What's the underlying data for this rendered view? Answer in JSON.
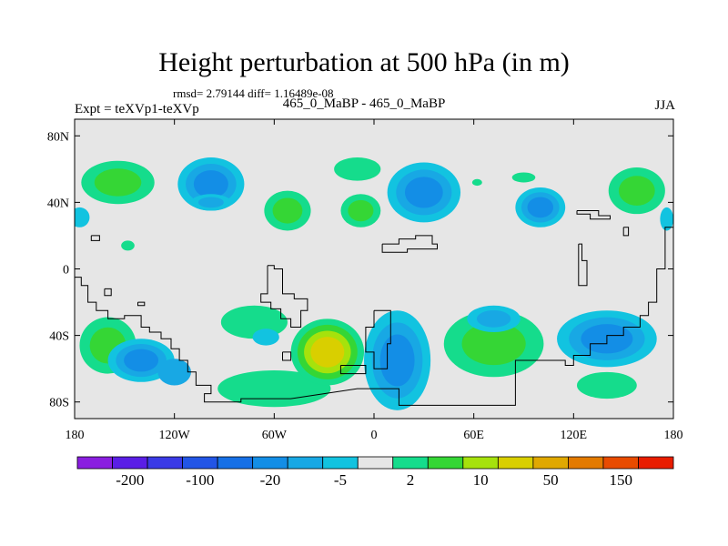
{
  "chart_data": {
    "type": "heatmap",
    "title": "Height perturbation at 500 hPa (in m)",
    "stats": "rmsd= 2.79144 diff= 1.16489e-08",
    "left_label": "Expt = teXVp1-teXVp",
    "center_label": "465_0_MaBP - 465_0_MaBP",
    "right_label": "JJA",
    "xlabel": "",
    "ylabel": "",
    "x_range": [
      -180,
      180
    ],
    "y_range": [
      -90,
      90
    ],
    "x_ticks": [
      {
        "value": -180,
        "label": "180"
      },
      {
        "value": -120,
        "label": "120W"
      },
      {
        "value": -60,
        "label": "60W"
      },
      {
        "value": 0,
        "label": "0"
      },
      {
        "value": 60,
        "label": "60E"
      },
      {
        "value": 120,
        "label": "120E"
      },
      {
        "value": 180,
        "label": "180"
      }
    ],
    "y_ticks": [
      {
        "value": 80,
        "label": "80N"
      },
      {
        "value": 40,
        "label": "40N"
      },
      {
        "value": 0,
        "label": "0"
      },
      {
        "value": -40,
        "label": "40S"
      },
      {
        "value": -80,
        "label": "80S"
      }
    ],
    "colorbar": {
      "colors": [
        "#8a1ee0",
        "#5a1ee6",
        "#3a3ae6",
        "#2255e6",
        "#1670e6",
        "#138ee6",
        "#18a8e4",
        "#12c3e0",
        "#e6e6e6",
        "#15dc8c",
        "#35d635",
        "#a6e20c",
        "#d9cf00",
        "#e0a800",
        "#e37a00",
        "#e84b00",
        "#e81d00"
      ],
      "labels": [
        {
          "index": 1,
          "text": "-200"
        },
        {
          "index": 3,
          "text": "-100"
        },
        {
          "index": 5,
          "text": "-20"
        },
        {
          "index": 7,
          "text": "-5"
        },
        {
          "index": 9,
          "text": "2"
        },
        {
          "index": 11,
          "text": "10"
        },
        {
          "index": 13,
          "text": "50"
        },
        {
          "index": 15,
          "text": "150"
        }
      ]
    },
    "features": [
      {
        "lon": -154,
        "lat": 52,
        "rlon": 22,
        "rlat": 13,
        "levels": [
          "#15dc8c",
          "#35d635"
        ]
      },
      {
        "lon": -177,
        "lat": 31,
        "rlon": 6,
        "rlat": 6,
        "levels": [
          "#12c3e0"
        ]
      },
      {
        "lon": -98,
        "lat": 51,
        "rlon": 20,
        "rlat": 16,
        "levels": [
          "#12c3e0",
          "#18a8e4",
          "#138ee6"
        ]
      },
      {
        "lon": -98,
        "lat": 40,
        "rlon": 12,
        "rlat": 5,
        "levels": [
          "#12c3e0",
          "#18a8e4"
        ]
      },
      {
        "lon": -148,
        "lat": 14,
        "rlon": 4,
        "rlat": 3,
        "levels": [
          "#15dc8c"
        ]
      },
      {
        "lon": -52,
        "lat": 35,
        "rlon": 14,
        "rlat": 12,
        "levels": [
          "#15dc8c",
          "#35d635"
        ]
      },
      {
        "lon": -10,
        "lat": 60,
        "rlon": 14,
        "rlat": 7,
        "levels": [
          "#15dc8c"
        ]
      },
      {
        "lon": -8,
        "lat": 35,
        "rlon": 12,
        "rlat": 10,
        "levels": [
          "#15dc8c",
          "#35d635"
        ]
      },
      {
        "lon": 30,
        "lat": 46,
        "rlon": 22,
        "rlat": 18,
        "levels": [
          "#12c3e0",
          "#18a8e4",
          "#138ee6"
        ]
      },
      {
        "lon": 62,
        "lat": 52,
        "rlon": 3,
        "rlat": 2,
        "levels": [
          "#15dc8c"
        ]
      },
      {
        "lon": 90,
        "lat": 55,
        "rlon": 7,
        "rlat": 3,
        "levels": [
          "#15dc8c"
        ]
      },
      {
        "lon": 100,
        "lat": 37,
        "rlon": 15,
        "rlat": 12,
        "levels": [
          "#12c3e0",
          "#18a8e4",
          "#138ee6"
        ]
      },
      {
        "lon": 158,
        "lat": 47,
        "rlon": 17,
        "rlat": 14,
        "levels": [
          "#15dc8c",
          "#35d635"
        ]
      },
      {
        "lon": 176,
        "lat": 30,
        "rlon": 4,
        "rlat": 7,
        "levels": [
          "#12c3e0"
        ]
      },
      {
        "lon": -160,
        "lat": -46,
        "rlon": 17,
        "rlat": 17,
        "levels": [
          "#15dc8c",
          "#35d635"
        ]
      },
      {
        "lon": -140,
        "lat": -55,
        "rlon": 20,
        "rlat": 13,
        "levels": [
          "#12c3e0",
          "#18a8e4",
          "#138ee6"
        ]
      },
      {
        "lon": -120,
        "lat": -62,
        "rlon": 10,
        "rlat": 8,
        "levels": [
          "#18a8e4"
        ]
      },
      {
        "lon": -72,
        "lat": -32,
        "rlon": 20,
        "rlat": 10,
        "levels": [
          "#15dc8c"
        ]
      },
      {
        "lon": -60,
        "lat": -72,
        "rlon": 34,
        "rlat": 11,
        "levels": [
          "#15dc8c"
        ]
      },
      {
        "lon": -28,
        "lat": -50,
        "rlon": 22,
        "rlat": 20,
        "levels": [
          "#15dc8c",
          "#35d635",
          "#a6e20c",
          "#d9cf00"
        ]
      },
      {
        "lon": -65,
        "lat": -41,
        "rlon": 8,
        "rlat": 5,
        "levels": [
          "#12c3e0"
        ]
      },
      {
        "lon": 14,
        "lat": -55,
        "rlon": 20,
        "rlat": 30,
        "levels": [
          "#12c3e0",
          "#18a8e4",
          "#138ee6"
        ]
      },
      {
        "lon": 72,
        "lat": -45,
        "rlon": 30,
        "rlat": 20,
        "levels": [
          "#15dc8c",
          "#35d635"
        ]
      },
      {
        "lon": 72,
        "lat": -30,
        "rlon": 16,
        "rlat": 8,
        "levels": [
          "#12c3e0",
          "#18a8e4"
        ]
      },
      {
        "lon": 140,
        "lat": -42,
        "rlon": 30,
        "rlat": 17,
        "levels": [
          "#12c3e0",
          "#18a8e4",
          "#138ee6"
        ]
      },
      {
        "lon": 140,
        "lat": -70,
        "rlon": 18,
        "rlat": 8,
        "levels": [
          "#15dc8c"
        ]
      }
    ],
    "land_outlines": [
      [
        [
          -180,
          -5
        ],
        [
          -176,
          -5
        ],
        [
          -176,
          -10
        ],
        [
          -172,
          -10
        ],
        [
          -172,
          -20
        ],
        [
          -167,
          -20
        ],
        [
          -167,
          -25
        ],
        [
          -160,
          -25
        ],
        [
          -160,
          -30
        ],
        [
          -150,
          -30
        ],
        [
          -150,
          -28
        ],
        [
          -140,
          -28
        ],
        [
          -140,
          -35
        ],
        [
          -135,
          -35
        ],
        [
          -135,
          -38
        ],
        [
          -128,
          -38
        ],
        [
          -128,
          -42
        ],
        [
          -122,
          -42
        ],
        [
          -122,
          -48
        ],
        [
          -117,
          -48
        ],
        [
          -117,
          -55
        ],
        [
          -112,
          -55
        ],
        [
          -112,
          -62
        ],
        [
          -107,
          -62
        ],
        [
          -107,
          -70
        ],
        [
          -98,
          -70
        ],
        [
          -98,
          -75
        ],
        [
          -102,
          -75
        ],
        [
          -102,
          -80
        ],
        [
          -80,
          -80
        ],
        [
          -80,
          -78
        ],
        [
          -50,
          -78
        ],
        [
          -30,
          -75
        ],
        [
          -10,
          -72
        ],
        [
          15,
          -72
        ],
        [
          15,
          -82
        ],
        [
          85,
          -82
        ],
        [
          85,
          -55
        ],
        [
          110,
          -55
        ],
        [
          110,
          -55
        ],
        [
          115,
          -55
        ],
        [
          115,
          -58
        ],
        [
          120,
          -58
        ],
        [
          120,
          -52
        ],
        [
          130,
          -52
        ],
        [
          130,
          -45
        ],
        [
          140,
          -45
        ],
        [
          140,
          -40
        ],
        [
          150,
          -40
        ],
        [
          150,
          -35
        ],
        [
          160,
          -35
        ],
        [
          160,
          -28
        ],
        [
          165,
          -28
        ],
        [
          165,
          -20
        ],
        [
          170,
          -20
        ],
        [
          170,
          0
        ],
        [
          175,
          0
        ],
        [
          175,
          25
        ],
        [
          180,
          25
        ]
      ],
      [
        [
          -64,
          2
        ],
        [
          -60,
          2
        ],
        [
          -60,
          0
        ],
        [
          -55,
          0
        ],
        [
          -55,
          -15
        ],
        [
          -48,
          -15
        ],
        [
          -48,
          -18
        ],
        [
          -40,
          -18
        ],
        [
          -40,
          -25
        ],
        [
          -44,
          -25
        ],
        [
          -44,
          -35
        ],
        [
          -50,
          -35
        ],
        [
          -50,
          -30
        ],
        [
          -56,
          -30
        ],
        [
          -56,
          -24
        ],
        [
          -62,
          -24
        ],
        [
          -62,
          -20
        ],
        [
          -68,
          -20
        ],
        [
          -68,
          -15
        ],
        [
          -64,
          -15
        ],
        [
          -64,
          2
        ]
      ],
      [
        [
          0,
          -25
        ],
        [
          10,
          -25
        ],
        [
          10,
          -45
        ],
        [
          8,
          -45
        ],
        [
          8,
          -60
        ],
        [
          0,
          -60
        ],
        [
          0,
          -50
        ],
        [
          -5,
          -50
        ],
        [
          -5,
          -35
        ],
        [
          0,
          -35
        ],
        [
          0,
          -25
        ]
      ],
      [
        [
          -20,
          -58
        ],
        [
          -5,
          -58
        ],
        [
          -5,
          -63
        ],
        [
          -20,
          -63
        ],
        [
          -20,
          -58
        ]
      ],
      [
        [
          -55,
          -50
        ],
        [
          -50,
          -50
        ],
        [
          -50,
          -55
        ],
        [
          -55,
          -55
        ],
        [
          -55,
          -50
        ]
      ],
      [
        [
          5,
          15
        ],
        [
          15,
          15
        ],
        [
          15,
          18
        ],
        [
          25,
          18
        ],
        [
          25,
          20
        ],
        [
          35,
          20
        ],
        [
          35,
          15
        ],
        [
          38,
          15
        ],
        [
          38,
          12
        ],
        [
          20,
          12
        ],
        [
          20,
          10
        ],
        [
          5,
          10
        ],
        [
          5,
          15
        ]
      ],
      [
        [
          122,
          35
        ],
        [
          135,
          35
        ],
        [
          135,
          32
        ],
        [
          142,
          32
        ],
        [
          142,
          30
        ],
        [
          130,
          30
        ],
        [
          130,
          33
        ],
        [
          122,
          33
        ],
        [
          122,
          35
        ]
      ],
      [
        [
          123,
          15
        ],
        [
          125,
          15
        ],
        [
          125,
          5
        ],
        [
          128,
          5
        ],
        [
          128,
          -10
        ],
        [
          123,
          -10
        ],
        [
          123,
          15
        ]
      ],
      [
        [
          150,
          25
        ],
        [
          153,
          25
        ],
        [
          153,
          20
        ],
        [
          150,
          20
        ],
        [
          150,
          25
        ]
      ],
      [
        [
          -170,
          20
        ],
        [
          -165,
          20
        ],
        [
          -165,
          17
        ],
        [
          -170,
          17
        ],
        [
          -170,
          20
        ]
      ],
      [
        [
          -162,
          -12
        ],
        [
          -158,
          -12
        ],
        [
          -158,
          -16
        ],
        [
          -162,
          -16
        ],
        [
          -162,
          -12
        ]
      ],
      [
        [
          -142,
          -20
        ],
        [
          -138,
          -20
        ],
        [
          -138,
          -22
        ],
        [
          -142,
          -22
        ],
        [
          -142,
          -20
        ]
      ]
    ]
  }
}
